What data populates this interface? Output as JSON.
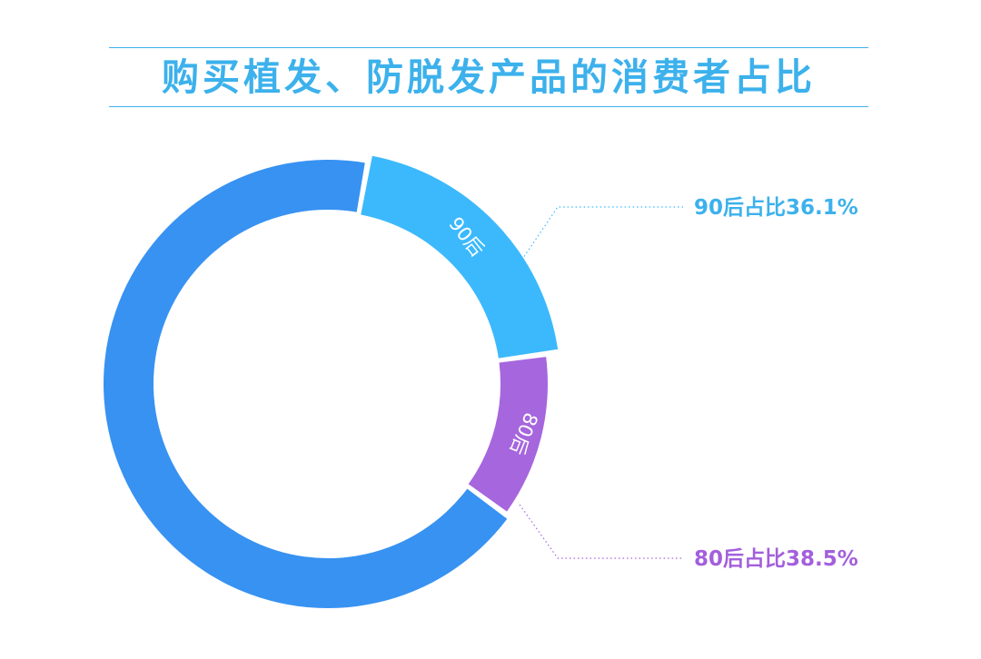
{
  "chart_data": {
    "type": "pie",
    "title": "购买植发、防脱发产品的消费者占比",
    "series": [
      {
        "name": "90后",
        "value": 36.1,
        "label": "90后",
        "callout": "90后占比36.1%",
        "color": "#3cb9fc"
      },
      {
        "name": "80后",
        "value": 38.5,
        "label": "80后",
        "callout": "80后占比38.5%",
        "color": "#a666dd"
      }
    ],
    "remainder": {
      "color": "#3792f2"
    },
    "legend": "callouts-right"
  }
}
